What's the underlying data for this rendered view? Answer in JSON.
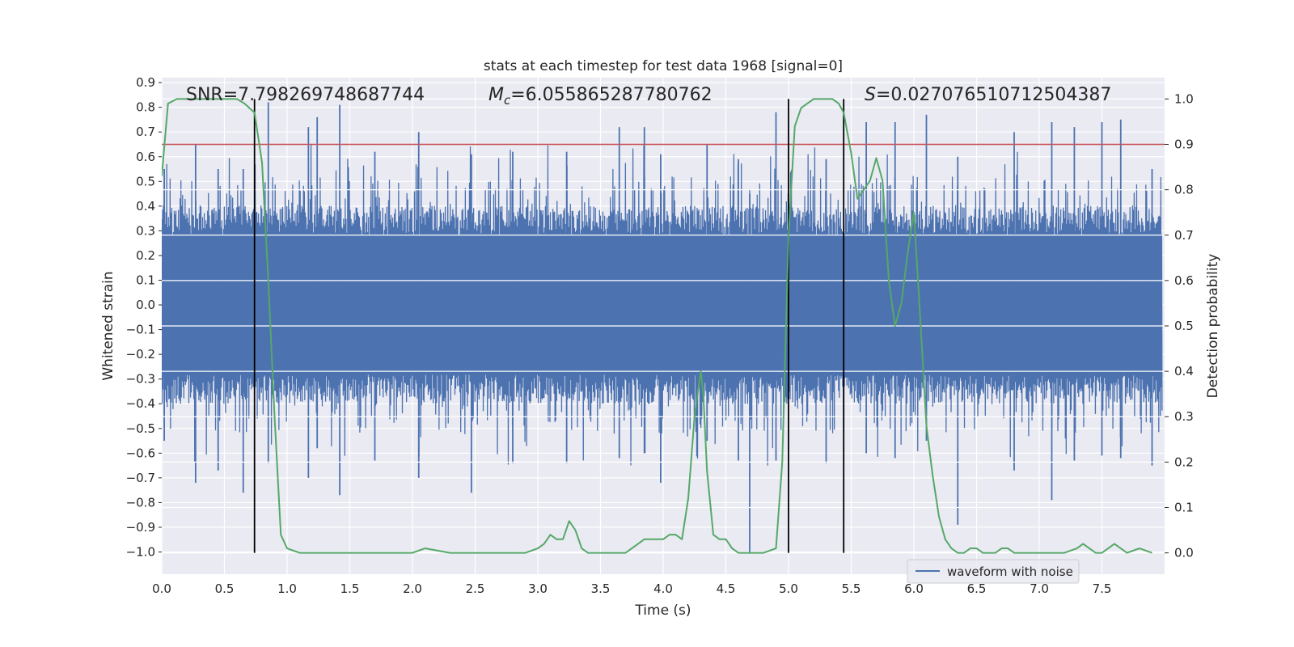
{
  "chart_data": {
    "type": "line",
    "title": "stats at each timestep for test data 1968 [signal=0]",
    "xlabel": "Time (s)",
    "ylabel": "Whitened strain",
    "y2label": "Detection probability",
    "xlim": [
      0.0,
      8.0
    ],
    "ylim": [
      -1.09,
      0.92
    ],
    "y2lim": [
      -0.047,
      1.047
    ],
    "x_ticks": [
      0.0,
      0.5,
      1.0,
      1.5,
      2.0,
      2.5,
      3.0,
      3.5,
      4.0,
      4.5,
      5.0,
      5.5,
      6.0,
      6.5,
      7.0,
      7.5
    ],
    "x_tick_labels": [
      "0.0",
      "0.5",
      "1.0",
      "1.5",
      "2.0",
      "2.5",
      "3.0",
      "3.5",
      "4.0",
      "4.5",
      "5.0",
      "5.5",
      "6.0",
      "6.5",
      "7.0",
      "7.5"
    ],
    "y_ticks": [
      0.9,
      0.8,
      0.7,
      0.6,
      0.5,
      0.4,
      0.3,
      0.2,
      0.1,
      0.0,
      -0.1,
      -0.2,
      -0.3,
      -0.4,
      -0.5,
      -0.6,
      -0.7,
      -0.8,
      -0.9,
      -1.0
    ],
    "y_tick_labels": [
      "0.9",
      "0.8",
      "0.7",
      "0.6",
      "0.5",
      "0.4",
      "0.3",
      "0.2",
      "0.1",
      "0.0",
      "−0.1",
      "−0.2",
      "−0.3",
      "−0.4",
      "−0.5",
      "−0.6",
      "−0.7",
      "−0.8",
      "−0.9",
      "−1.0"
    ],
    "y2_ticks": [
      1.0,
      0.9,
      0.8,
      0.7,
      0.6,
      0.5,
      0.4,
      0.3,
      0.2,
      0.1,
      0.0
    ],
    "y2_tick_labels": [
      "1.0",
      "0.9",
      "0.8",
      "0.7",
      "0.6",
      "0.5",
      "0.4",
      "0.3",
      "0.2",
      "0.1",
      "0.0"
    ],
    "annotations": {
      "snr": "SNR=7.798269748687744",
      "mc_symbol": "M",
      "mc_sub": "c",
      "mc_value": "=6.055865287780762",
      "s_symbol": "S",
      "s_value": "=0.027076510712504387"
    },
    "threshold_prob": 0.9,
    "vertical_lines_x": [
      0.74,
      5.0,
      5.44
    ],
    "vertical_lines_prob_range": [
      0.0,
      1.0
    ],
    "legend": {
      "entries": [
        "waveform with noise"
      ],
      "placement": "lower-right"
    },
    "series": [
      {
        "name": "waveform with noise",
        "axis": "left",
        "color": "#4c72b0",
        "envelope_core": 0.28,
        "spikes": [
          {
            "x": 0.02,
            "hi": 0.55,
            "lo": -0.55
          },
          {
            "x": 0.27,
            "hi": 0.65,
            "lo": -0.72
          },
          {
            "x": 0.45,
            "hi": 0.55,
            "lo": -0.67
          },
          {
            "x": 0.65,
            "hi": 0.55,
            "lo": -0.76
          },
          {
            "x": 0.85,
            "hi": 0.82,
            "lo": -0.64
          },
          {
            "x": 1.17,
            "hi": 0.72,
            "lo": -0.7
          },
          {
            "x": 1.24,
            "hi": 0.76,
            "lo": -0.58
          },
          {
            "x": 1.42,
            "hi": 0.81,
            "lo": -0.77
          },
          {
            "x": 1.7,
            "hi": 0.62,
            "lo": -0.63
          },
          {
            "x": 2.05,
            "hi": 0.7,
            "lo": -0.7
          },
          {
            "x": 2.47,
            "hi": 0.61,
            "lo": -0.76
          },
          {
            "x": 2.8,
            "hi": 0.62,
            "lo": -0.64
          },
          {
            "x": 3.23,
            "hi": 0.62,
            "lo": -0.64
          },
          {
            "x": 3.65,
            "hi": 0.72,
            "lo": -0.62
          },
          {
            "x": 3.85,
            "hi": 0.72,
            "lo": -0.6
          },
          {
            "x": 3.98,
            "hi": 0.61,
            "lo": -0.72
          },
          {
            "x": 4.35,
            "hi": 0.65,
            "lo": -0.55
          },
          {
            "x": 4.6,
            "hi": 0.59,
            "lo": -0.63
          },
          {
            "x": 4.69,
            "hi": 0.45,
            "lo": -1.0
          },
          {
            "x": 4.9,
            "hi": 0.78,
            "lo": -0.63
          },
          {
            "x": 5.3,
            "hi": 0.59,
            "lo": -0.64
          },
          {
            "x": 5.62,
            "hi": 0.74,
            "lo": -0.6
          },
          {
            "x": 5.85,
            "hi": 0.74,
            "lo": -0.62
          },
          {
            "x": 6.1,
            "hi": 0.77,
            "lo": -0.55
          },
          {
            "x": 6.35,
            "hi": 0.6,
            "lo": -0.89
          },
          {
            "x": 6.8,
            "hi": 0.7,
            "lo": -0.67
          },
          {
            "x": 7.1,
            "hi": 0.74,
            "lo": -0.79
          },
          {
            "x": 7.28,
            "hi": 0.72,
            "lo": -0.63
          },
          {
            "x": 7.5,
            "hi": 0.74,
            "lo": -0.61
          },
          {
            "x": 7.65,
            "hi": 0.75,
            "lo": -0.62
          },
          {
            "x": 7.9,
            "hi": 0.55,
            "lo": -0.65
          }
        ]
      },
      {
        "name": "detection probability",
        "axis": "right",
        "color": "#55a868",
        "x": [
          0.0,
          0.05,
          0.12,
          0.2,
          0.3,
          0.4,
          0.5,
          0.6,
          0.66,
          0.74,
          0.8,
          0.85,
          0.9,
          0.95,
          1.0,
          1.1,
          1.2,
          1.4,
          1.6,
          1.8,
          2.0,
          2.1,
          2.3,
          2.5,
          2.7,
          2.9,
          3.0,
          3.05,
          3.1,
          3.15,
          3.2,
          3.25,
          3.3,
          3.35,
          3.4,
          3.5,
          3.7,
          3.85,
          4.0,
          4.05,
          4.1,
          4.15,
          4.2,
          4.25,
          4.3,
          4.32,
          4.35,
          4.4,
          4.45,
          4.5,
          4.55,
          4.6,
          4.65,
          4.7,
          4.8,
          4.9,
          4.95,
          5.0,
          5.05,
          5.1,
          5.15,
          5.2,
          5.25,
          5.3,
          5.35,
          5.4,
          5.44,
          5.5,
          5.55,
          5.6,
          5.65,
          5.7,
          5.75,
          5.8,
          5.85,
          5.9,
          5.95,
          6.0,
          6.05,
          6.1,
          6.15,
          6.2,
          6.25,
          6.3,
          6.35,
          6.4,
          6.45,
          6.5,
          6.55,
          6.6,
          6.65,
          6.7,
          6.75,
          6.8,
          6.85,
          6.9,
          6.95,
          7.0,
          7.1,
          7.2,
          7.3,
          7.35,
          7.4,
          7.45,
          7.5,
          7.55,
          7.6,
          7.65,
          7.7,
          7.8,
          7.9
        ],
        "y": [
          0.83,
          0.99,
          1.0,
          1.0,
          1.0,
          1.0,
          1.0,
          1.0,
          0.99,
          0.97,
          0.86,
          0.6,
          0.3,
          0.04,
          0.01,
          0.0,
          0.0,
          0.0,
          0.0,
          0.0,
          0.0,
          0.01,
          0.0,
          0.0,
          0.0,
          0.0,
          0.01,
          0.02,
          0.04,
          0.03,
          0.03,
          0.07,
          0.05,
          0.01,
          0.0,
          0.0,
          0.0,
          0.03,
          0.03,
          0.04,
          0.04,
          0.03,
          0.12,
          0.3,
          0.4,
          0.35,
          0.18,
          0.04,
          0.03,
          0.03,
          0.01,
          0.0,
          0.0,
          0.0,
          0.0,
          0.01,
          0.2,
          0.7,
          0.94,
          0.98,
          0.99,
          1.0,
          1.0,
          1.0,
          1.0,
          0.99,
          0.97,
          0.88,
          0.78,
          0.8,
          0.82,
          0.87,
          0.82,
          0.6,
          0.5,
          0.55,
          0.66,
          0.75,
          0.52,
          0.28,
          0.17,
          0.08,
          0.03,
          0.01,
          0.0,
          0.0,
          0.01,
          0.01,
          0.0,
          0.0,
          0.0,
          0.01,
          0.01,
          0.0,
          0.0,
          0.0,
          0.0,
          0.0,
          0.0,
          0.0,
          0.01,
          0.02,
          0.01,
          0.0,
          0.0,
          0.01,
          0.02,
          0.01,
          0.0,
          0.01,
          0.0
        ]
      },
      {
        "name": "threshold",
        "axis": "right",
        "color": "#c44e52",
        "value": 0.9
      }
    ]
  }
}
